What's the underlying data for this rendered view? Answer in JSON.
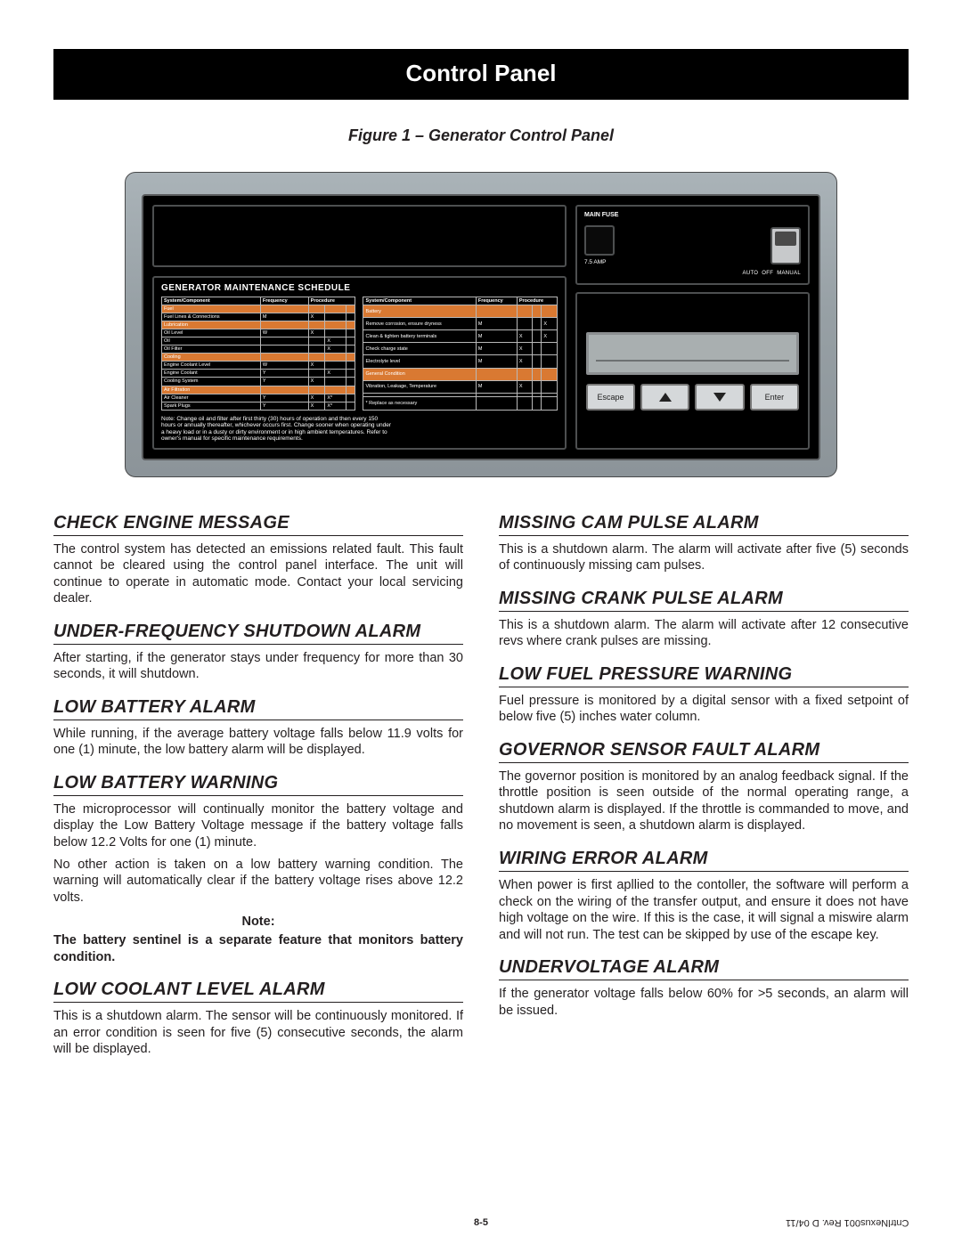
{
  "header": {
    "title": "Control Panel"
  },
  "figure_caption": "Figure 1 – Generator Control Panel",
  "panel": {
    "maintenance_title": "GENERATOR MAINTENANCE SCHEDULE",
    "table_headers": [
      "System/Component",
      "Frequency",
      "Procedure"
    ],
    "freq_sub": "Weekly - W\nMonthly - M\nYearly - Y",
    "proc_sub": [
      "Inspect",
      "Change",
      "Clean"
    ],
    "left_rows": [
      {
        "orange": true,
        "cells": [
          "Fuel",
          "",
          "",
          "",
          ""
        ]
      },
      {
        "cells": [
          "Fuel Lines & Connections",
          "M",
          "X",
          "",
          ""
        ]
      },
      {
        "orange": true,
        "cells": [
          "Lubrication",
          "",
          "",
          "",
          ""
        ]
      },
      {
        "cells": [
          "Oil Level",
          "W",
          "X",
          "",
          ""
        ]
      },
      {
        "cells": [
          "Oil",
          "",
          "",
          "X",
          ""
        ]
      },
      {
        "cells": [
          "Oil Filter",
          "",
          "",
          "X",
          ""
        ]
      },
      {
        "orange": true,
        "cells": [
          "Cooling",
          "",
          "",
          "",
          ""
        ]
      },
      {
        "cells": [
          "Engine Coolant Level",
          "W",
          "X",
          "",
          ""
        ]
      },
      {
        "cells": [
          "Engine Coolant",
          "Y",
          "",
          "X",
          ""
        ]
      },
      {
        "cells": [
          "Cooling System",
          "Y",
          "X",
          "",
          ""
        ]
      },
      {
        "orange": true,
        "cells": [
          "Air Filtration",
          "",
          "",
          "",
          ""
        ]
      },
      {
        "cells": [
          "Air Cleaner",
          "Y",
          "X",
          "X*",
          ""
        ]
      },
      {
        "cells": [
          "Spark Plugs",
          "Y",
          "X",
          "X*",
          ""
        ]
      }
    ],
    "right_rows": [
      {
        "orange": true,
        "cells": [
          "Battery",
          "",
          "",
          "",
          ""
        ]
      },
      {
        "cells": [
          "Remove corrosion, ensure dryness",
          "M",
          "",
          "",
          "X"
        ]
      },
      {
        "cells": [
          "Clean & tighten battery terminals",
          "M",
          "X",
          "",
          "X"
        ]
      },
      {
        "cells": [
          "Check charge state",
          "M",
          "X",
          "",
          ""
        ]
      },
      {
        "cells": [
          "Electrolyte level",
          "M",
          "X",
          "",
          ""
        ]
      },
      {
        "orange": true,
        "cells": [
          "General Condition",
          "",
          "",
          "",
          ""
        ]
      },
      {
        "cells": [
          "Vibration, Leakage, Temperature",
          "M",
          "X",
          "",
          ""
        ]
      },
      {
        "cells": [
          "",
          "",
          "",
          "",
          ""
        ]
      },
      {
        "cells": [
          "* Replace as necessary",
          "",
          "",
          "",
          ""
        ]
      }
    ],
    "maint_note": "Note: Change oil and filter after first thirty (30) hours of operation and then every 150 hours or annually thereafter, whichever occurs first. Change sooner when operating under a heavy load or in a dusty or dirty environment or in high ambient temperatures. Refer to owner's manual for specific maintenance requirements.",
    "fuse_label": "MAIN FUSE",
    "amp_label": "7.5 AMP",
    "modes": [
      "AUTO",
      "OFF",
      "MANUAL"
    ],
    "buttons": {
      "escape": "Escape",
      "enter": "Enter"
    }
  },
  "left_col": {
    "s1_title": "CHECK ENGINE MESSAGE",
    "s1_p1": "The control system has detected an emissions related fault.  This fault cannot be cleared using the control panel interface. The unit will continue to operate in automatic mode.  Contact your local servicing dealer.",
    "s2_title": "UNDER-FREQUENCY SHUTDOWN ALARM",
    "s2_p1": "After starting, if the generator stays under frequency for more than 30 seconds, it will shutdown.",
    "s3_title": "LOW BATTERY ALARM",
    "s3_p1": "While running, if the average battery voltage falls below 11.9 volts for one (1) minute, the low battery alarm will be displayed.",
    "s4_title": "LOW BATTERY WARNING",
    "s4_p1": "The microprocessor will continually monitor the battery voltage and display the Low Battery Voltage message if the battery voltage falls below 12.2 Volts for one (1) minute.",
    "s4_p2": "No other action is taken on a low battery warning condition. The warning will automatically clear if the battery voltage rises above 12.2 volts.",
    "note_label": "Note:",
    "note_text": "The battery sentinel is a separate feature that monitors battery condition.",
    "s5_title": "LOW COOLANT LEVEL ALARM",
    "s5_p1": "This is a shutdown alarm. The sensor will be continuously monitored. If an error condition is seen for five (5) consecutive seconds, the alarm will be displayed."
  },
  "right_col": {
    "s1_title": "MISSING CAM PULSE ALARM",
    "s1_p1": "This is a shutdown alarm. The alarm will activate after five (5) seconds of continuously missing cam pulses.",
    "s2_title": "MISSING CRANK PULSE ALARM",
    "s2_p1": "This is a shutdown alarm. The alarm will activate after 12 consecutive revs where crank pulses are missing.",
    "s3_title": "LOW FUEL PRESSURE WARNING",
    "s3_p1": "Fuel pressure is monitored by a digital sensor with a fixed setpoint of below five (5) inches water column.",
    "s4_title": "GOVERNOR SENSOR FAULT ALARM",
    "s4_p1": "The governor position is monitored by an analog feedback signal. If the throttle position is seen outside of the normal operating range, a shutdown alarm is displayed. If the throttle is commanded to move, and no movement is seen, a shutdown alarm is displayed.",
    "s5_title": "WIRING ERROR ALARM",
    "s5_p1": "When power is first apllied to the contoller, the software will perform a check on the wiring of the transfer output, and ensure it does not have high voltage on the wire. If this is the case, it will signal a miswire alarm and will not run. The test can be skipped by use of the escape key.",
    "s6_title": "UNDERVOLTAGE ALARM",
    "s6_p1": "If the generator voltage falls below 60% for >5 seconds, an alarm will be issued."
  },
  "footer": {
    "page": "8-5",
    "rev": "CntrlNexus001  Rev. D  04/11"
  }
}
